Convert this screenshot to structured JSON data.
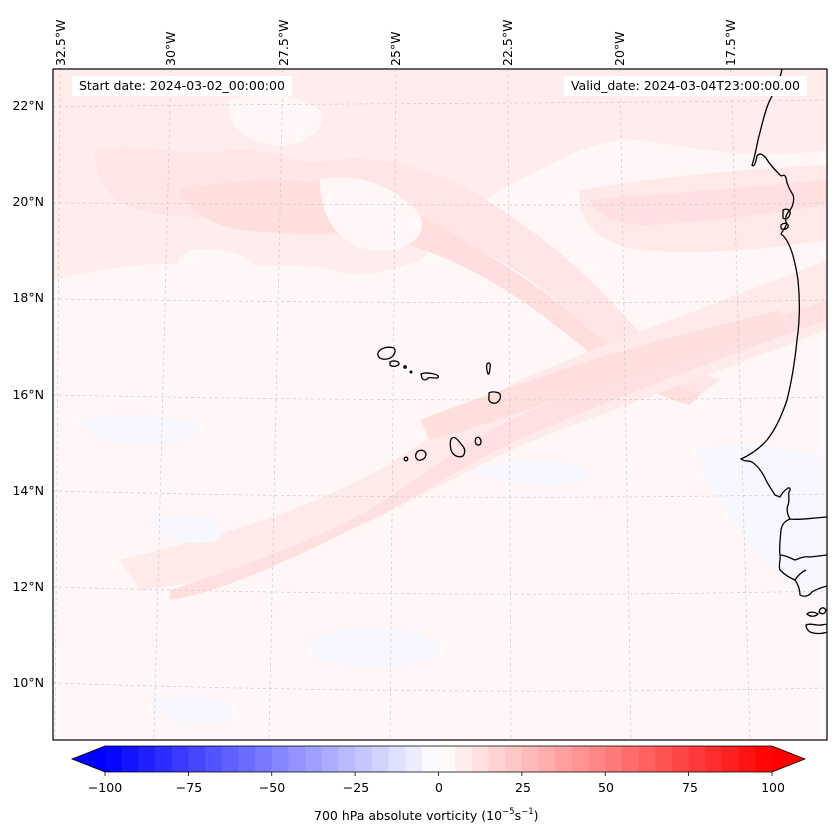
{
  "header": {
    "start_date": "Start date: 2024-03-02_00:00:00",
    "valid_date": "Valid_date: 2024-03-04T23:00:00.00"
  },
  "map": {
    "projection_note": "conic-like projection, meridians tilted",
    "lon_labels": [
      "32.5°W",
      "30°W",
      "27.5°W",
      "25°W",
      "22.5°W",
      "20°W",
      "17.5°W"
    ],
    "lat_labels": [
      "22°N",
      "20°N",
      "18°N",
      "16°N",
      "14°N",
      "12°N",
      "10°N"
    ],
    "extent": {
      "lon_min": -32.7,
      "lon_max": -16.3,
      "lat_min": 8.9,
      "lat_max": 22.8
    },
    "features": [
      "Cabo Verde islands",
      "West African coastline (Mauritania, Senegal, Gambia, Guinea-Bissau)"
    ],
    "field_colors": {
      "background_weak_positive": "#fff7f7",
      "positive_0_5": "#fff2f2",
      "positive_5_10": "#ffe5e5",
      "positive_10_15": "#ffdcdc",
      "negative_0_5": "#f7f8ff"
    }
  },
  "colorbar": {
    "label_main": "700 hPa absolute vorticity (10",
    "label_exp1": "−5",
    "label_mid": "s",
    "label_exp2": "−1",
    "label_end": ")",
    "ticks": [
      "−100",
      "−75",
      "−50",
      "−25",
      "0",
      "25",
      "50",
      "75",
      "100"
    ],
    "min": -100,
    "max": 100,
    "step": 5,
    "extend": "both",
    "cmap": "bwr",
    "low_color": "#0000ff",
    "mid_color": "#ffffff",
    "high_color": "#ff0000"
  },
  "chart_data": {
    "type": "heatmap",
    "title": "",
    "variable": "700 hPa absolute vorticity",
    "units": "10^-5 s^-1",
    "colorbar_range": [
      -100,
      100
    ],
    "colorbar_ticks": [
      -100,
      -75,
      -50,
      -25,
      0,
      25,
      50,
      75,
      100
    ],
    "xlabel": "",
    "ylabel": "",
    "x_ticks": [
      "32.5°W",
      "30°W",
      "27.5°W",
      "25°W",
      "22.5°W",
      "20°W",
      "17.5°W"
    ],
    "y_ticks": [
      "22°N",
      "20°N",
      "18°N",
      "16°N",
      "14°N",
      "12°N",
      "10°N"
    ],
    "grid": true,
    "field_summary": "Mostly weak positive values (0–15) with bands NW–SE across north, SW–NE band through Cabo Verde; small patches of weak negative (-5–0) in south"
  }
}
